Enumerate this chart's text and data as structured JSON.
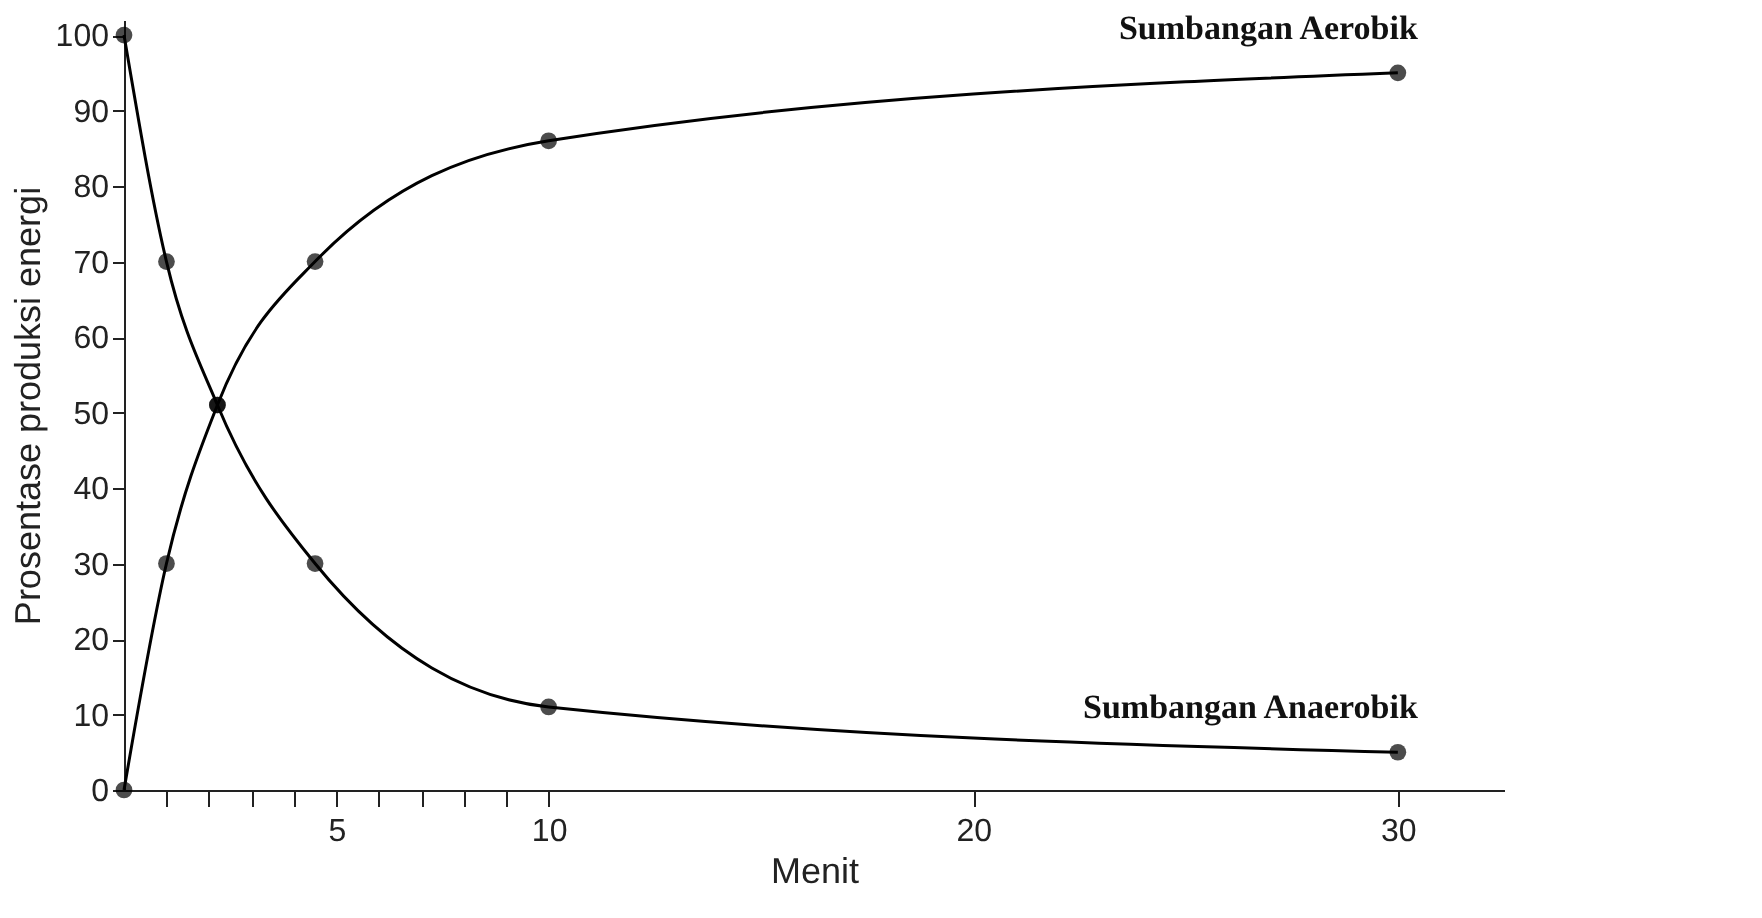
{
  "chart_data": {
    "type": "line",
    "xlabel": "Menit",
    "ylabel": "Prosentase produksi energi",
    "x": [
      0,
      1,
      2.2,
      4.5,
      10,
      30
    ],
    "series": [
      {
        "name": "Sumbangan Aerobik",
        "color": "#000000",
        "values": [
          0,
          30,
          51,
          70,
          86,
          95
        ]
      },
      {
        "name": "Sumbangan Anaerobik",
        "color": "#000000",
        "values": [
          100,
          70,
          51,
          30,
          11,
          5
        ]
      }
    ],
    "xlim": [
      0,
      32.5
    ],
    "xticks": [
      {
        "value": 1,
        "label": null
      },
      {
        "value": 2,
        "label": null
      },
      {
        "value": 3,
        "label": null
      },
      {
        "value": 4,
        "label": null
      },
      5,
      {
        "value": 6,
        "label": null
      },
      {
        "value": 7,
        "label": null
      },
      {
        "value": 8,
        "label": null
      },
      {
        "value": 9,
        "label": null
      },
      10,
      20,
      30
    ],
    "ylim": [
      0,
      102
    ],
    "yticks": [
      0,
      10,
      20,
      30,
      40,
      50,
      60,
      70,
      80,
      90,
      100
    ],
    "grid": false,
    "legend": false,
    "marker": "circle",
    "line_style": "solid"
  }
}
